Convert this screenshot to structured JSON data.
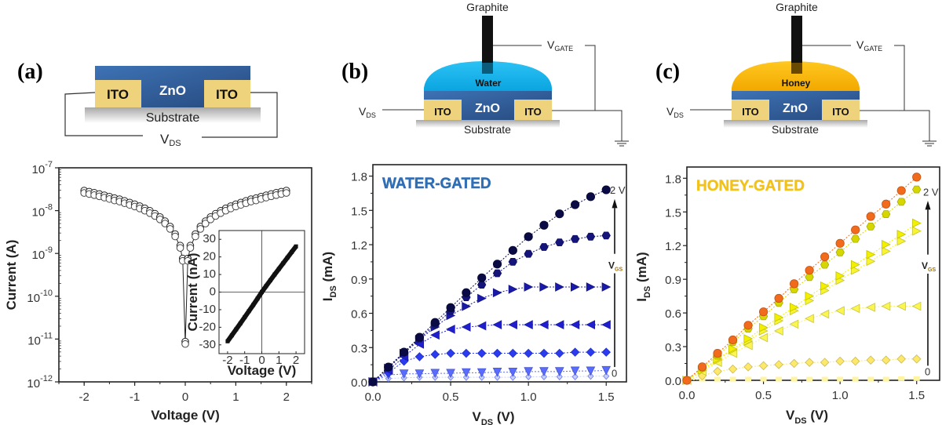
{
  "panels": {
    "a": {
      "label": "(a)",
      "diagram": {
        "top_layer": "ZnO",
        "contact_left": "ITO",
        "contact_right": "ITO",
        "substrate": "Substrate",
        "vds_main": "V",
        "vds_sub": "DS"
      }
    },
    "b": {
      "label": "(b)",
      "diagram": {
        "electrode": "Graphite",
        "gate_main": "V",
        "gate_sub": "GATE",
        "electrolyte": "Water",
        "top_layer": "ZnO",
        "contact_left": "ITO",
        "contact_right": "ITO",
        "substrate": "Substrate",
        "vds_main": "V",
        "vds_sub": "DS"
      }
    },
    "c": {
      "label": "(c)",
      "diagram": {
        "electrode": "Graphite",
        "gate_main": "V",
        "gate_sub": "GATE",
        "electrolyte": "Honey",
        "top_layer": "ZnO",
        "contact_left": "ITO",
        "contact_right": "ITO",
        "substrate": "Substrate",
        "vds_main": "V",
        "vds_sub": "DS"
      }
    }
  },
  "colors": {
    "zno": "#3566a6",
    "ito": "#eed27c",
    "water": "#14b4ee",
    "honey": "#f6b800",
    "water_title": "#2f6db5",
    "honey_title": "#f2c21a"
  },
  "chart_data": [
    {
      "id": "a-main",
      "type": "scatter",
      "xlabel": "Voltage (V)",
      "ylabel": "Current (A)",
      "xlim": [
        -2.5,
        2.5
      ],
      "ylim": [
        1e-12,
        1e-07
      ],
      "yscale": "log",
      "xticks": [
        "-2",
        "-1",
        "0",
        "1",
        "2"
      ],
      "yticks": [
        {
          "base": "10",
          "exp": "-7"
        },
        {
          "base": "10",
          "exp": "-8"
        },
        {
          "base": "10",
          "exp": "-9"
        },
        {
          "base": "10",
          "exp": "-10"
        },
        {
          "base": "10",
          "exp": "-11"
        },
        {
          "base": "10",
          "exp": "-12"
        }
      ],
      "marker": "open-circle",
      "x": [
        -2,
        -1.9,
        -1.8,
        -1.7,
        -1.6,
        -1.5,
        -1.4,
        -1.3,
        -1.2,
        -1.1,
        -1,
        -0.9,
        -0.8,
        -0.7,
        -0.6,
        -0.5,
        -0.4,
        -0.3,
        -0.2,
        -0.1,
        -0.05,
        0,
        0.05,
        0.1,
        0.2,
        0.3,
        0.4,
        0.5,
        0.6,
        0.7,
        0.8,
        0.9,
        1,
        1.1,
        1.2,
        1.3,
        1.4,
        1.5,
        1.6,
        1.7,
        1.8,
        1.9,
        2
      ],
      "y": [
        2.7e-08,
        2.55e-08,
        2.4e-08,
        2.25e-08,
        2.1e-08,
        1.95e-08,
        1.8e-08,
        1.7e-08,
        1.55e-08,
        1.42e-08,
        1.3e-08,
        1.17e-08,
        1.04e-08,
        9.1e-09,
        7.8e-09,
        6.5e-09,
        5.2e-09,
        3.9e-09,
        2.6e-09,
        1.4e-09,
        7e-10,
        8e-12,
        7e-10,
        1.4e-09,
        2.6e-09,
        3.9e-09,
        5.2e-09,
        6.5e-09,
        7.8e-09,
        9.1e-09,
        1.04e-08,
        1.17e-08,
        1.3e-08,
        1.42e-08,
        1.55e-08,
        1.7e-08,
        1.8e-08,
        1.95e-08,
        2.1e-08,
        2.25e-08,
        2.4e-08,
        2.55e-08,
        2.7e-08
      ]
    },
    {
      "id": "a-inset",
      "type": "scatter",
      "xlabel": "Voltage (V)",
      "ylabel": "Current (nA)",
      "xlim": [
        -2.5,
        2.5
      ],
      "ylim": [
        -35,
        35
      ],
      "xticks": [
        "-2",
        "-1",
        "0",
        "1",
        "2"
      ],
      "yticks": [
        "30",
        "20",
        "10",
        "0",
        "-10",
        "-20",
        "-30"
      ],
      "x": [
        -2,
        -1.75,
        -1.5,
        -1.25,
        -1,
        -0.75,
        -0.5,
        -0.25,
        0,
        0.25,
        0.5,
        0.75,
        1,
        1.25,
        1.5,
        1.75,
        2
      ],
      "y": [
        -28,
        -24.6,
        -21.2,
        -17.8,
        -14.3,
        -10.8,
        -7.3,
        -3.7,
        0,
        3.4,
        6.7,
        10,
        13.2,
        16.4,
        19.6,
        22.8,
        26
      ]
    },
    {
      "id": "b",
      "type": "scatter",
      "title": "WATER-GATED",
      "xlabel_main": "V",
      "xlabel_sub": "DS",
      "xlabel_unit": " (V)",
      "ylabel_main": "I",
      "ylabel_sub": "DS",
      "ylabel_unit": " (mA)",
      "xlim": [
        0,
        1.63
      ],
      "ylim": [
        0,
        1.9
      ],
      "xticks": [
        "0.0",
        "0.5",
        "1.0",
        "1.5"
      ],
      "yticks": [
        "0.0",
        "0.3",
        "0.6",
        "0.9",
        "1.2",
        "1.5",
        "1.8"
      ],
      "annotation": {
        "top": "2 V",
        "bottom": "0",
        "arrow_main": "V",
        "arrow_sub": "GS"
      },
      "x": [
        0,
        0.1,
        0.2,
        0.3,
        0.4,
        0.5,
        0.6,
        0.7,
        0.8,
        0.9,
        1.0,
        1.1,
        1.2,
        1.3,
        1.4,
        1.5
      ],
      "series": [
        {
          "marker": "circle",
          "color": "#0a0a45",
          "values": [
            0,
            0.13,
            0.26,
            0.39,
            0.52,
            0.65,
            0.78,
            0.91,
            1.03,
            1.15,
            1.27,
            1.37,
            1.47,
            1.55,
            1.62,
            1.68
          ]
        },
        {
          "marker": "hexagon",
          "color": "#14147a",
          "values": [
            0,
            0.13,
            0.26,
            0.38,
            0.5,
            0.62,
            0.74,
            0.85,
            0.95,
            1.05,
            1.12,
            1.18,
            1.22,
            1.25,
            1.27,
            1.28
          ]
        },
        {
          "marker": "triangle-right",
          "color": "#1a1aa8",
          "values": [
            0,
            0.12,
            0.25,
            0.37,
            0.48,
            0.58,
            0.66,
            0.73,
            0.78,
            0.81,
            0.83,
            0.83,
            0.83,
            0.83,
            0.83,
            0.83
          ]
        },
        {
          "marker": "triangle-left",
          "color": "#1f1fcf",
          "values": [
            0,
            0.1,
            0.22,
            0.33,
            0.41,
            0.46,
            0.48,
            0.49,
            0.5,
            0.5,
            0.5,
            0.5,
            0.5,
            0.5,
            0.5,
            0.5
          ]
        },
        {
          "marker": "diamond",
          "color": "#2b3cf0",
          "values": [
            0,
            0.08,
            0.18,
            0.22,
            0.24,
            0.25,
            0.25,
            0.25,
            0.25,
            0.25,
            0.25,
            0.25,
            0.25,
            0.26,
            0.26,
            0.26
          ]
        },
        {
          "marker": "triangle-down",
          "color": "#5a6cff",
          "values": [
            0,
            0.06,
            0.07,
            0.07,
            0.075,
            0.075,
            0.08,
            0.08,
            0.085,
            0.085,
            0.09,
            0.09,
            0.09,
            0.095,
            0.095,
            0.1
          ]
        },
        {
          "marker": "diamond-small",
          "color": "#c8d0ff",
          "values": [
            0,
            0.03,
            0.035,
            0.04,
            0.04,
            0.04,
            0.04,
            0.04,
            0.04,
            0.04,
            0.045,
            0.045,
            0.045,
            0.045,
            0.05,
            0.05
          ]
        }
      ]
    },
    {
      "id": "c",
      "type": "scatter",
      "title": "HONEY-GATED",
      "xlabel_main": "V",
      "xlabel_sub": "DS",
      "xlabel_unit": " (V)",
      "ylabel_main": "I",
      "ylabel_sub": "DS",
      "ylabel_unit": " (mA)",
      "xlim": [
        0,
        1.65
      ],
      "ylim": [
        0,
        1.9
      ],
      "xticks": [
        "0.0",
        "0.5",
        "1.0",
        "1.5"
      ],
      "yticks": [
        "0.0",
        "0.3",
        "0.6",
        "0.9",
        "1.2",
        "1.5",
        "1.8"
      ],
      "annotation": {
        "top": "2 V",
        "bottom": "0",
        "arrow_main": "V",
        "arrow_sub": "GS"
      },
      "x": [
        0,
        0.1,
        0.2,
        0.3,
        0.4,
        0.5,
        0.6,
        0.7,
        0.8,
        0.9,
        1.0,
        1.1,
        1.2,
        1.3,
        1.4,
        1.5
      ],
      "series": [
        {
          "marker": "circle",
          "color": "#f26a1b",
          "values": [
            0,
            0.12,
            0.24,
            0.36,
            0.49,
            0.61,
            0.73,
            0.86,
            0.98,
            1.1,
            1.22,
            1.34,
            1.46,
            1.57,
            1.69,
            1.81
          ]
        },
        {
          "marker": "hexagon",
          "color": "#d6d600",
          "values": [
            0,
            0.11,
            0.22,
            0.34,
            0.46,
            0.57,
            0.69,
            0.81,
            0.92,
            1.03,
            1.14,
            1.26,
            1.37,
            1.48,
            1.59,
            1.7
          ]
        },
        {
          "marker": "triangle-right",
          "color": "#f2f000",
          "values": [
            0,
            0.09,
            0.19,
            0.28,
            0.37,
            0.47,
            0.56,
            0.65,
            0.75,
            0.84,
            0.93,
            1.03,
            1.12,
            1.21,
            1.3,
            1.4
          ]
        },
        {
          "marker": "triangle-right",
          "color": "#f8f430",
          "values": [
            0,
            0.09,
            0.18,
            0.27,
            0.35,
            0.44,
            0.53,
            0.62,
            0.71,
            0.8,
            0.89,
            0.98,
            1.06,
            1.15,
            1.24,
            1.33
          ]
        },
        {
          "marker": "triangle-left",
          "color": "#fbf550",
          "values": [
            0,
            0.08,
            0.16,
            0.24,
            0.31,
            0.38,
            0.44,
            0.5,
            0.55,
            0.59,
            0.62,
            0.64,
            0.65,
            0.66,
            0.66,
            0.66
          ]
        },
        {
          "marker": "diamond",
          "color": "#fde86a",
          "values": [
            0,
            0.04,
            0.08,
            0.1,
            0.12,
            0.13,
            0.14,
            0.15,
            0.16,
            0.16,
            0.17,
            0.17,
            0.18,
            0.18,
            0.19,
            0.19
          ]
        },
        {
          "marker": "square",
          "color": "#fff4a0",
          "values": [
            0,
            0.01,
            0.01,
            0.01,
            0.01,
            0.01,
            0.01,
            0.01,
            0.01,
            0.01,
            0.01,
            0.01,
            0.01,
            0.01,
            0.015,
            0.015
          ]
        }
      ]
    }
  ]
}
